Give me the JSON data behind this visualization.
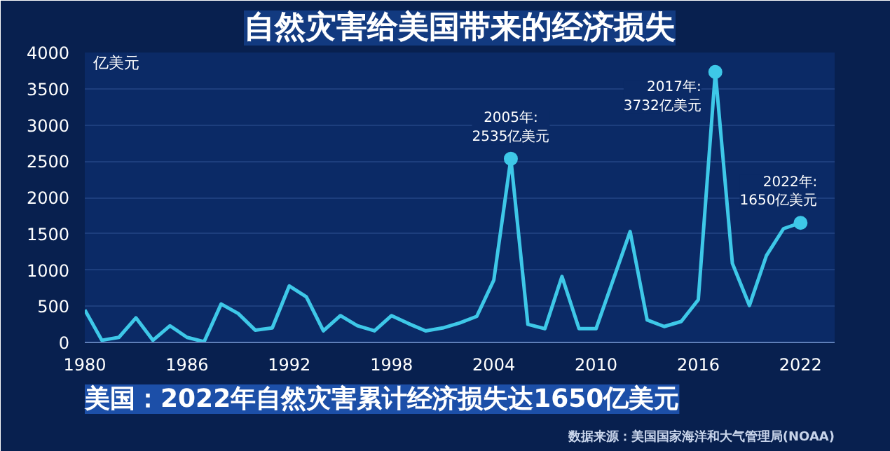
{
  "chart_data": {
    "type": "line",
    "title": "自然灾害给美国带来的经济损失",
    "subtitle": "美国：2022年自然灾害累计经济损失达1650亿美元",
    "ylabel": "亿美元",
    "x": [
      1980,
      1981,
      1982,
      1983,
      1984,
      1985,
      1986,
      1987,
      1988,
      1989,
      1990,
      1991,
      1992,
      1993,
      1994,
      1995,
      1996,
      1997,
      1998,
      1999,
      2000,
      2001,
      2002,
      2003,
      2004,
      2005,
      2006,
      2007,
      2008,
      2009,
      2010,
      2011,
      2012,
      2013,
      2014,
      2015,
      2016,
      2017,
      2018,
      2019,
      2020,
      2021,
      2022
    ],
    "series": [
      {
        "color": "#3ec8e8",
        "values": [
          450,
          30,
          70,
          340,
          30,
          230,
          70,
          10,
          530,
          400,
          170,
          200,
          780,
          630,
          160,
          370,
          230,
          160,
          370,
          260,
          160,
          200,
          270,
          360,
          860,
          2535,
          250,
          190,
          910,
          190,
          190,
          860,
          1530,
          310,
          220,
          290,
          590,
          3732,
          1090,
          510,
          1200,
          1570,
          1650
        ]
      }
    ],
    "xlim": [
      1980,
      2024
    ],
    "ylim": [
      0,
      4000
    ],
    "xticks": [
      1980,
      1986,
      1992,
      1998,
      2004,
      2010,
      2016,
      2022
    ],
    "yticks": [
      0,
      500,
      1000,
      1500,
      2000,
      2500,
      3000,
      3500,
      4000
    ],
    "grid": "y",
    "line_style": "solid",
    "annotations": [
      {
        "text": "2005年:\n2535亿美元",
        "x": 2005,
        "y": 2535
      },
      {
        "text": "2017年:\n3732亿美元",
        "x": 2017,
        "y": 3732
      },
      {
        "text": "2022年:\n1650亿美元",
        "x": 2022,
        "y": 1650
      },
      "数据来源：美国国家海洋和大气管理局(NOAA)"
    ]
  }
}
